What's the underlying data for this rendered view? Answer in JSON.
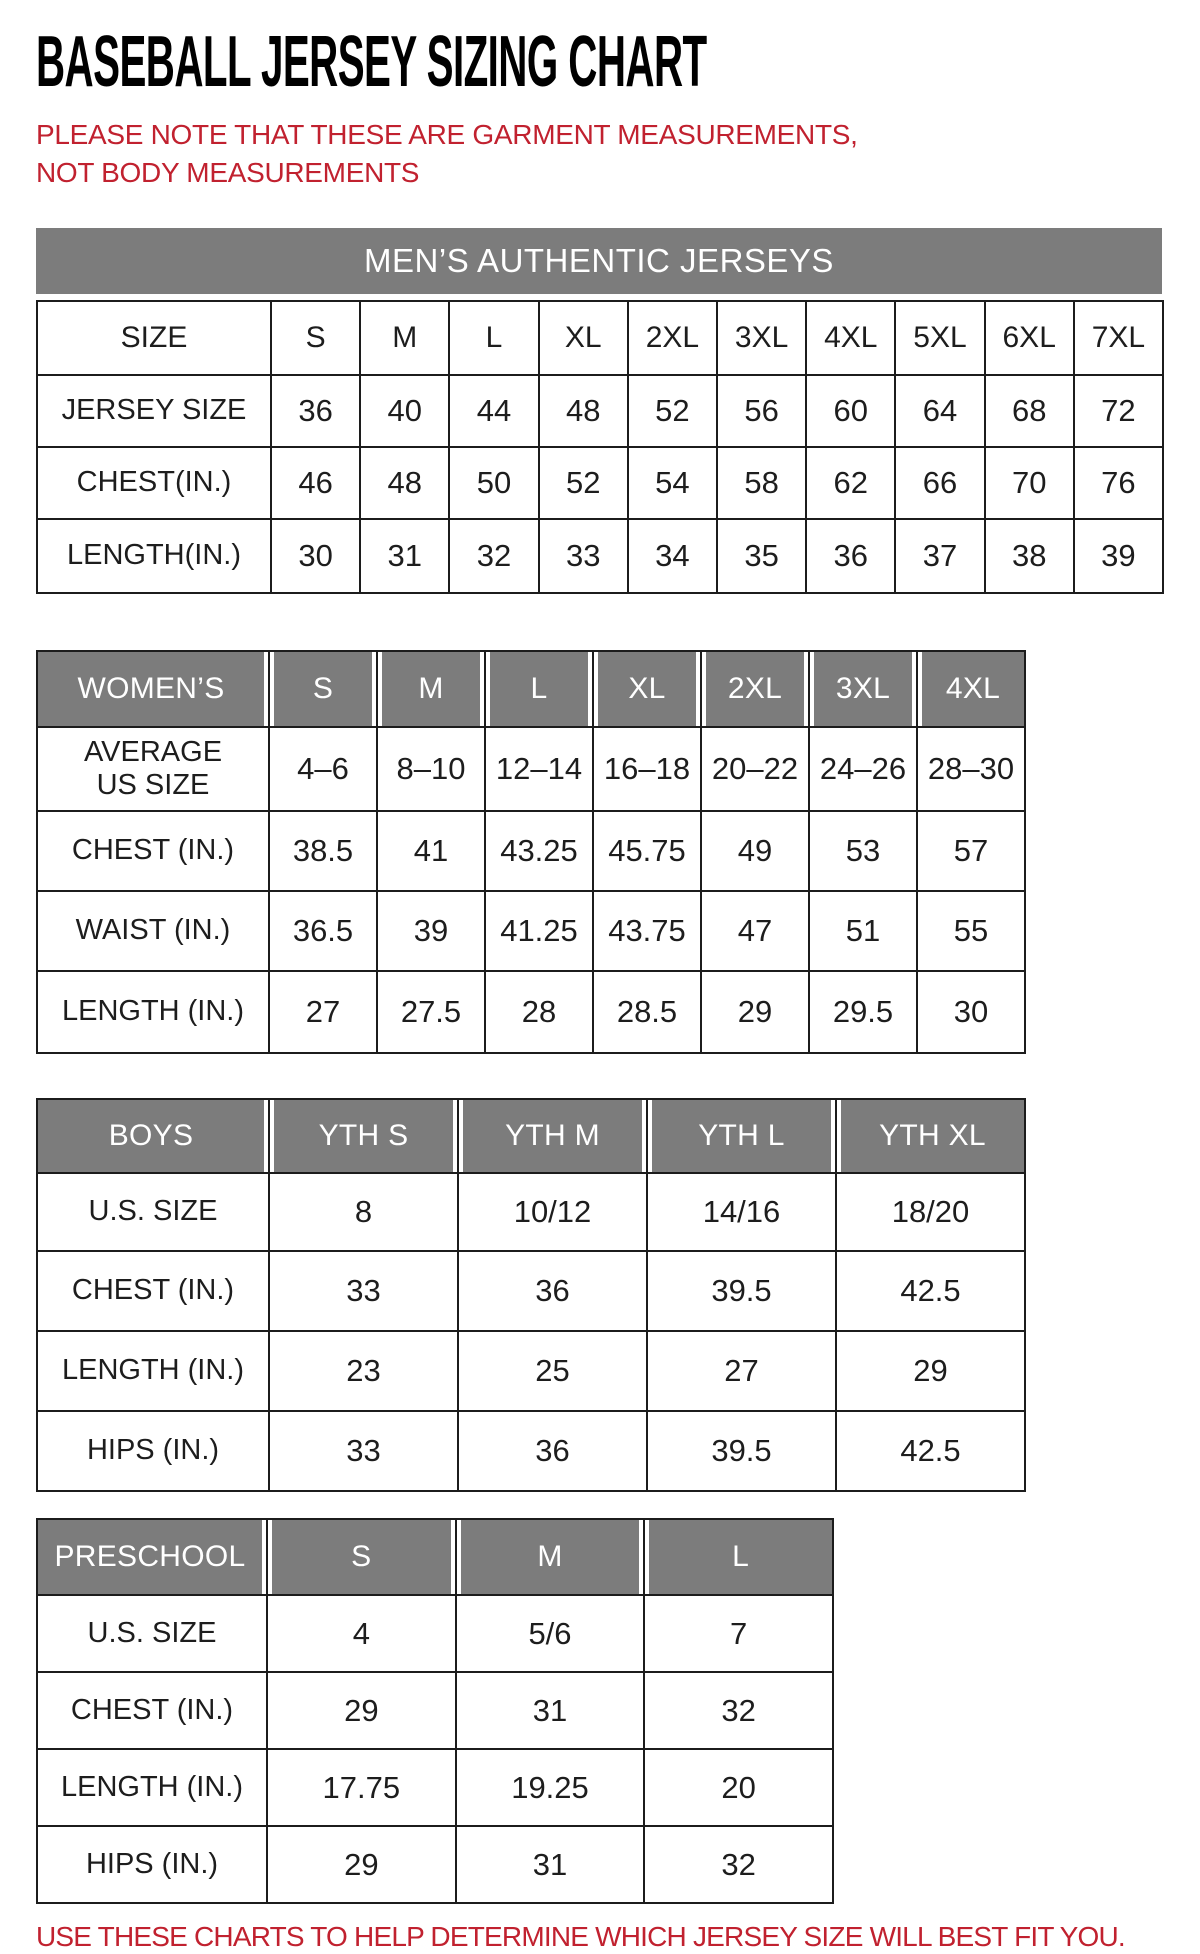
{
  "page": {
    "title": "BASEBALL JERSEY SIZING CHART",
    "note": "PLEASE NOTE THAT THESE ARE GARMENT MEASUREMENTS, NOT BODY MEASUREMENTS",
    "footer": "USE THESE CHARTS TO HELP DETERMINE WHICH JERSEY SIZE WILL BEST FIT YOU."
  },
  "colors": {
    "header_gray": "#7c7c7c",
    "accent_red": "#c1212f",
    "border": "#1c1c1c"
  },
  "tables": {
    "mens": {
      "banner": "MEN’S AUTHENTIC JERSEYS",
      "columns": [
        "SIZE",
        "S",
        "M",
        "L",
        "XL",
        "2XL",
        "3XL",
        "4XL",
        "5XL",
        "6XL",
        "7XL"
      ],
      "rows": [
        {
          "label": "JERSEY SIZE",
          "values": [
            "36",
            "40",
            "44",
            "48",
            "52",
            "56",
            "60",
            "64",
            "68",
            "72"
          ]
        },
        {
          "label": "CHEST(IN.)",
          "values": [
            "46",
            "48",
            "50",
            "52",
            "54",
            "58",
            "62",
            "66",
            "70",
            "76"
          ]
        },
        {
          "label": "LENGTH(IN.)",
          "values": [
            "30",
            "31",
            "32",
            "33",
            "34",
            "35",
            "36",
            "37",
            "38",
            "39"
          ]
        }
      ]
    },
    "womens": {
      "header": [
        "WOMEN’S",
        "S",
        "M",
        "L",
        "XL",
        "2XL",
        "3XL",
        "4XL"
      ],
      "rows": [
        {
          "label": "AVERAGE US SIZE",
          "values": [
            "4–6",
            "8–10",
            "12–14",
            "16–18",
            "20–22",
            "24–26",
            "28–30"
          ]
        },
        {
          "label": "CHEST (IN.)",
          "values": [
            "38.5",
            "41",
            "43.25",
            "45.75",
            "49",
            "53",
            "57"
          ]
        },
        {
          "label": "WAIST (IN.)",
          "values": [
            "36.5",
            "39",
            "41.25",
            "43.75",
            "47",
            "51",
            "55"
          ]
        },
        {
          "label": "LENGTH (IN.)",
          "values": [
            "27",
            "27.5",
            "28",
            "28.5",
            "29",
            "29.5",
            "30"
          ]
        }
      ]
    },
    "boys": {
      "header": [
        "BOYS",
        "YTH S",
        "YTH M",
        "YTH L",
        "YTH XL"
      ],
      "rows": [
        {
          "label": "U.S. SIZE",
          "values": [
            "8",
            "10/12",
            "14/16",
            "18/20"
          ]
        },
        {
          "label": "CHEST (IN.)",
          "values": [
            "33",
            "36",
            "39.5",
            "42.5"
          ]
        },
        {
          "label": "LENGTH (IN.)",
          "values": [
            "23",
            "25",
            "27",
            "29"
          ]
        },
        {
          "label": "HIPS (IN.)",
          "values": [
            "33",
            "36",
            "39.5",
            "42.5"
          ]
        }
      ]
    },
    "preschool": {
      "header": [
        "PRESCHOOL",
        "S",
        "M",
        "L"
      ],
      "rows": [
        {
          "label": "U.S. SIZE",
          "values": [
            "4",
            "5/6",
            "7"
          ]
        },
        {
          "label": "CHEST (IN.)",
          "values": [
            "29",
            "31",
            "32"
          ]
        },
        {
          "label": "LENGTH (IN.)",
          "values": [
            "17.75",
            "19.25",
            "20"
          ]
        },
        {
          "label": "HIPS (IN.)",
          "values": [
            "29",
            "31",
            "32"
          ]
        }
      ]
    }
  }
}
